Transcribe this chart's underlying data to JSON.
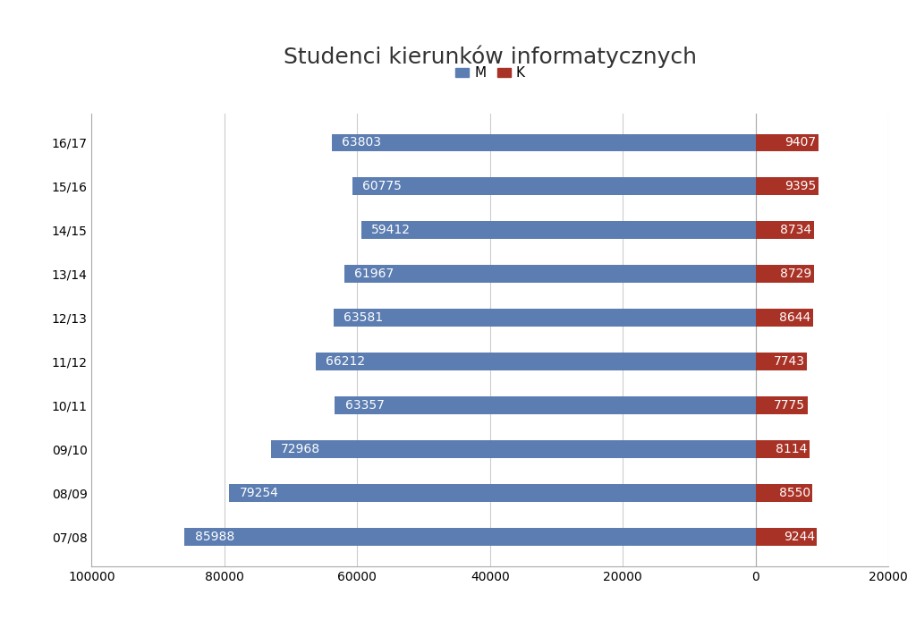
{
  "title": "Studenci kierunków informatycznych",
  "years": [
    "16/17",
    "15/16",
    "14/15",
    "13/14",
    "12/13",
    "11/12",
    "10/11",
    "09/10",
    "08/09",
    "07/08"
  ],
  "M_values": [
    63803,
    60775,
    59412,
    61967,
    63581,
    66212,
    63357,
    72968,
    79254,
    85988
  ],
  "K_values": [
    9407,
    9395,
    8734,
    8729,
    8644,
    7743,
    7775,
    8114,
    8550,
    9244
  ],
  "M_color": "#5B7DB1",
  "K_color": "#A93226",
  "background_color": "#FFFFFF",
  "text_color_bar": "#FFFFFF",
  "legend_M": "M",
  "legend_K": "K",
  "title_fontsize": 18,
  "bar_label_fontsize": 10,
  "tick_fontsize": 10,
  "bar_height": 0.4
}
